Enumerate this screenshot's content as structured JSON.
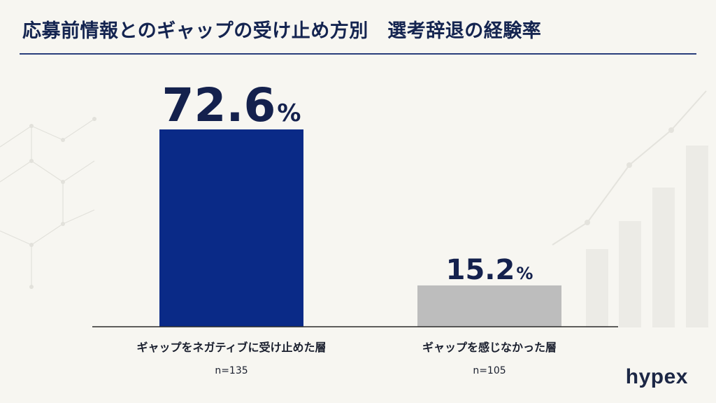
{
  "title": "応募前情報とのギャップの受け止め方別　選考辞退の経験率",
  "brand": "hypex",
  "chart_data": {
    "type": "bar",
    "categories": [
      "ギャップをネガティブに受け止めた層",
      "ギャップを感じなかった層"
    ],
    "sample_sizes": [
      "n=135",
      "n=105"
    ],
    "values": [
      72.6,
      15.2
    ],
    "value_labels": [
      "72.6",
      "15.2"
    ],
    "unit": "%",
    "colors": [
      "#0a2a87",
      "#bdbdbd"
    ],
    "ylim": [
      0,
      100
    ],
    "grid": false
  }
}
